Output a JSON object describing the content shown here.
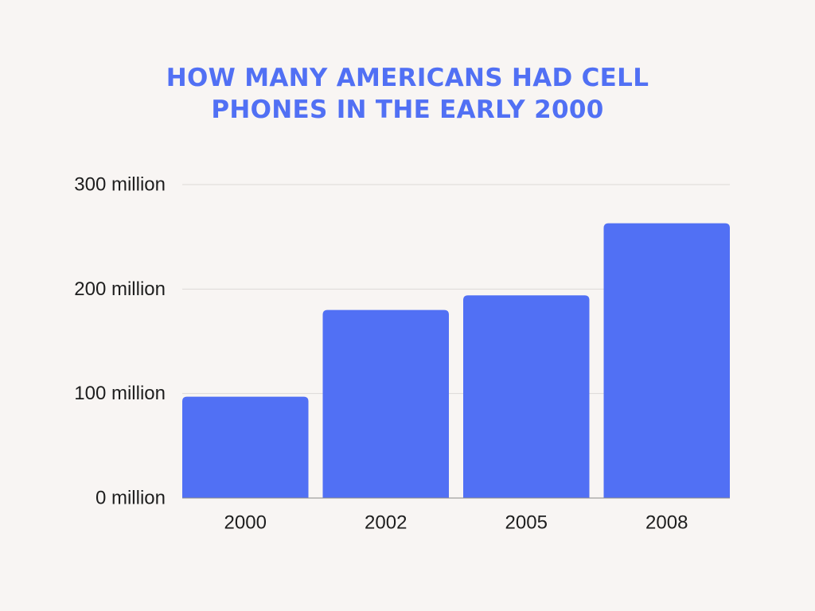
{
  "chart_data": {
    "type": "bar",
    "title_lines": [
      "HOW MANY AMERICANS HAD CELL",
      "PHONES IN THE EARLY 2000"
    ],
    "categories": [
      "2000",
      "2002",
      "2005",
      "2008"
    ],
    "values": [
      97,
      180,
      194,
      263
    ],
    "value_unit": "million",
    "xlabel": "",
    "ylabel": "",
    "ylim": [
      0,
      300
    ],
    "yticks": [
      0,
      100,
      200,
      300
    ],
    "ytick_labels": [
      "0 million",
      "100 million",
      "200 million",
      "300 million"
    ],
    "grid": true,
    "legend": "none",
    "bar_color": "#5170f4",
    "title_color": "#5170f4",
    "grid_color": "#dcd9d6",
    "text_color": "#1e1e1e",
    "background": "#f8f5f3"
  }
}
